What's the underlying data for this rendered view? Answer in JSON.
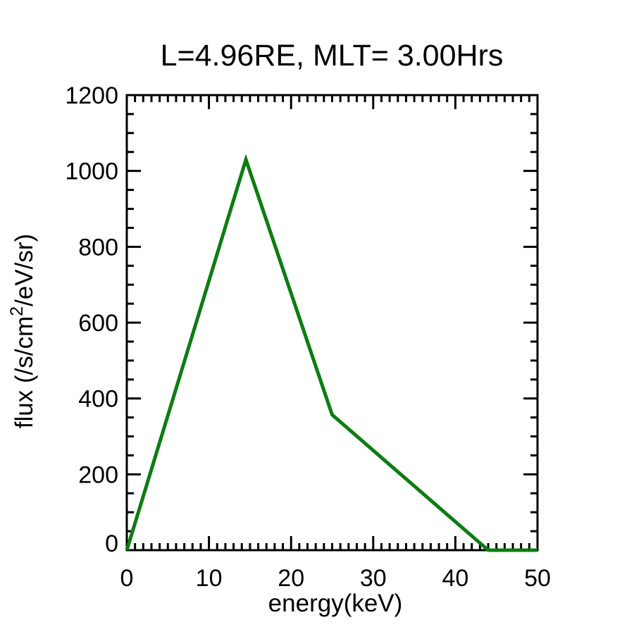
{
  "page": {
    "background": "#ffffff",
    "foreground": "#000000"
  },
  "chart_data": {
    "type": "line",
    "title": "L=4.96RE, MLT= 3.00Hrs",
    "xlabel": "energy(keV)",
    "ylabel": "flux (/s/cm2/eV/sr)",
    "ylabel_parts": {
      "pre": "flux (/s/cm",
      "sup": "2",
      "post": "/eV/sr)"
    },
    "xlim": [
      0,
      50
    ],
    "ylim": [
      0,
      1200
    ],
    "x_major_ticks": [
      0,
      10,
      20,
      30,
      40,
      50
    ],
    "y_major_ticks": [
      0,
      200,
      400,
      600,
      800,
      1000,
      1200
    ],
    "x_minor_step": 1,
    "y_minor_step": 50,
    "grid": false,
    "legend": false,
    "axis_color": "#000000",
    "series": [
      {
        "name": "flux-spectrum",
        "color": "#0d7c12",
        "points": [
          {
            "x": 0,
            "y": 0
          },
          {
            "x": 14.5,
            "y": 1030
          },
          {
            "x": 25,
            "y": 357
          },
          {
            "x": 44,
            "y": 0
          },
          {
            "x": 50,
            "y": 0
          }
        ]
      }
    ]
  }
}
